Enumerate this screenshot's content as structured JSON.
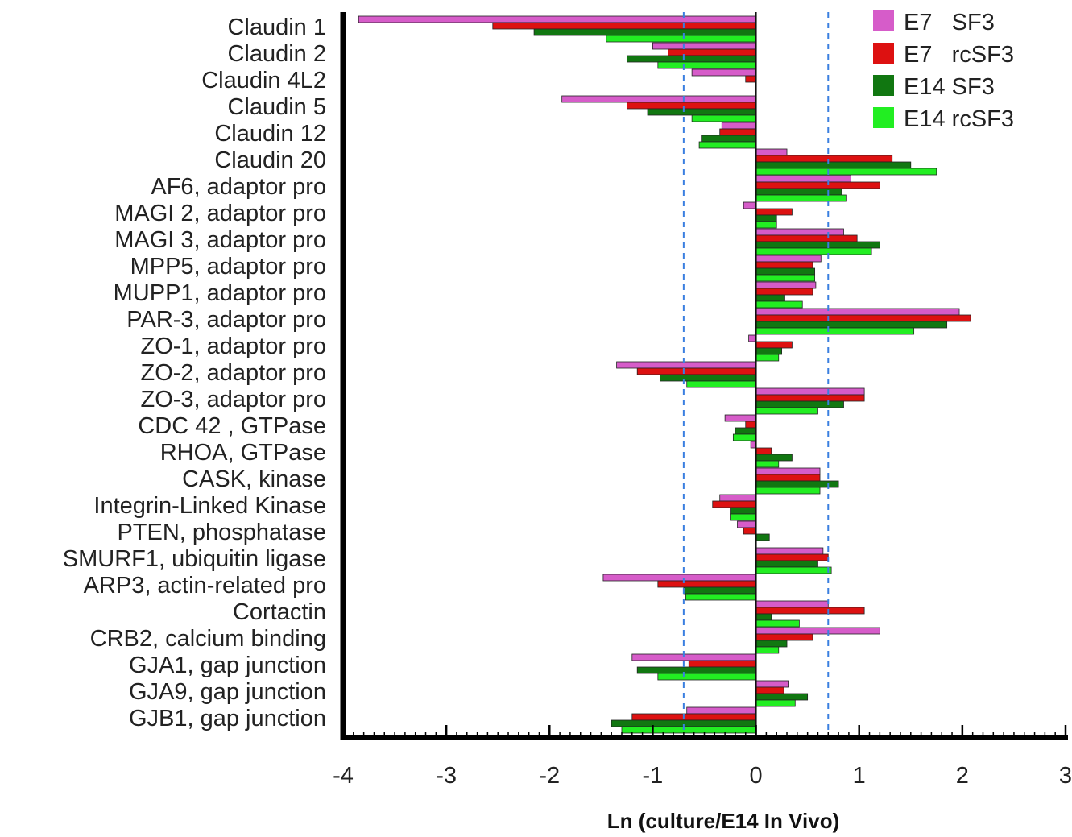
{
  "chart_data": {
    "type": "bar",
    "orientation": "horizontal",
    "xlabel": "Ln (culture/E14 In Vivo)",
    "ylabel": "",
    "xlim": [
      -4,
      3
    ],
    "xticks": [
      -4,
      -3,
      -2,
      -1,
      0,
      1,
      2,
      3
    ],
    "reference_lines": [
      -0.7,
      0.7
    ],
    "legend_position": "top-right",
    "categories": [
      "Claudin 1",
      "Claudin 2",
      "Claudin 4L2",
      "Claudin 5",
      "Claudin 12",
      "Claudin 20",
      "AF6, adaptor pro",
      "MAGI 2, adaptor pro",
      "MAGI 3, adaptor pro",
      "MPP5, adaptor pro",
      "MUPP1, adaptor pro",
      "PAR-3, adaptor pro",
      "ZO-1, adaptor pro",
      "ZO-2, adaptor pro",
      "ZO-3, adaptor pro",
      "CDC 42 , GTPase",
      "RHOA, GTPase",
      "CASK, kinase",
      "Integrin-Linked Kinase",
      "PTEN, phosphatase",
      "SMURF1, ubiquitin ligase",
      "ARP3, actin-related pro",
      "Cortactin",
      "CRB2, calcium binding",
      "GJA1, gap junction",
      "GJA9, gap junction",
      "GJB1, gap junction"
    ],
    "series": [
      {
        "name": "E7   SF3",
        "color": "#d65cc9",
        "values": [
          -3.85,
          -1.0,
          -0.62,
          -1.88,
          -0.33,
          0.3,
          0.92,
          -0.12,
          0.85,
          0.63,
          0.58,
          1.97,
          -0.07,
          -1.35,
          1.05,
          -0.3,
          -0.05,
          0.62,
          -0.35,
          -0.18,
          0.65,
          -1.48,
          0.7,
          1.2,
          -1.2,
          0.32,
          -0.67
        ]
      },
      {
        "name": "E7   rcSF3",
        "color": "#dd1111",
        "values": [
          -2.55,
          -0.85,
          -0.1,
          -1.25,
          -0.35,
          1.32,
          1.2,
          0.35,
          0.98,
          0.55,
          0.55,
          2.08,
          0.35,
          -1.15,
          1.05,
          -0.1,
          0.15,
          0.62,
          -0.42,
          -0.12,
          0.7,
          -0.95,
          1.05,
          0.55,
          -0.65,
          0.27,
          -1.2
        ]
      },
      {
        "name": "E14 SF3",
        "color": "#117711",
        "values": [
          -2.15,
          -1.25,
          0.0,
          -1.05,
          -0.53,
          1.5,
          0.83,
          0.2,
          1.2,
          0.57,
          0.28,
          1.85,
          0.25,
          -0.93,
          0.85,
          -0.2,
          0.35,
          0.8,
          -0.25,
          0.13,
          0.6,
          -0.7,
          0.15,
          0.3,
          -1.15,
          0.5,
          -1.4
        ]
      },
      {
        "name": "E14 rcSF3",
        "color": "#22ee22",
        "values": [
          -1.45,
          -0.95,
          0.0,
          -0.62,
          -0.55,
          1.75,
          0.88,
          0.2,
          1.12,
          0.57,
          0.45,
          1.53,
          0.22,
          -0.67,
          0.6,
          -0.22,
          0.22,
          0.62,
          -0.25,
          0.0,
          0.73,
          -0.68,
          0.42,
          0.22,
          -0.95,
          0.38,
          -1.3
        ]
      }
    ]
  }
}
